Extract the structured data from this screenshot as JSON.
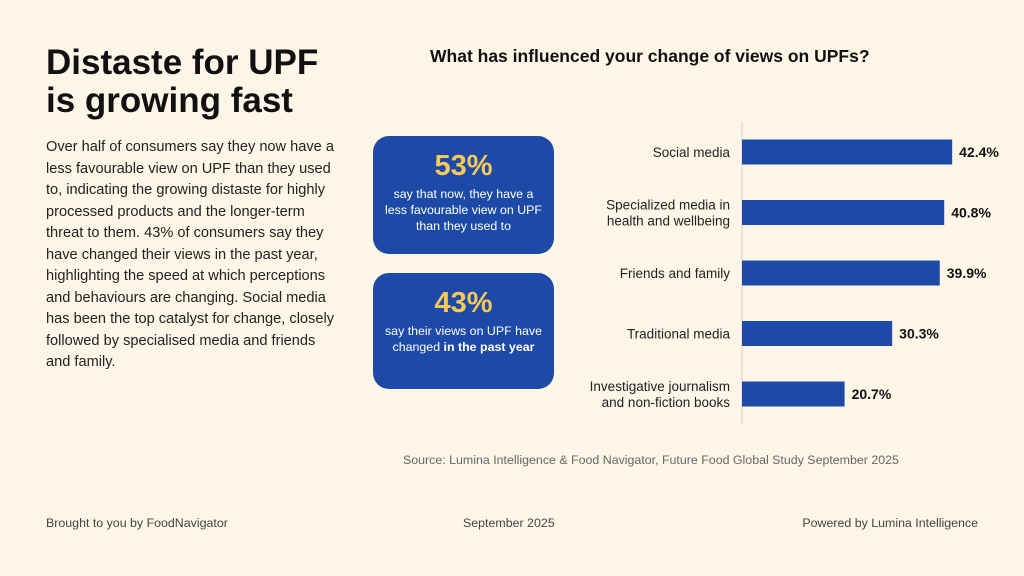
{
  "headline": "Distaste for UPF is growing fast",
  "body": "Over half of consumers say they now have a less favourable view on UPF than they used to, indicating the growing distaste for highly processed products and the longer-term threat to them. 43% of consumers say they have changed their views in the past year, highlighting the speed at which perceptions and behaviours are changing. Social media has been the top catalyst for change, closely followed by specialised media and friends and family.",
  "stats": [
    {
      "value": "53%",
      "text": "say that now, they have a less favourable view on UPF than they used to",
      "text_bold": ""
    },
    {
      "value": "43%",
      "text": "say their views on UPF have changed ",
      "text_bold": "in the past year"
    }
  ],
  "chart_data": {
    "type": "bar",
    "orientation": "horizontal",
    "title": "What has influenced your change of views on UPFs?",
    "categories": [
      "Social media",
      "Specialized media in health and wellbeing",
      "Friends and family",
      "Traditional media",
      "Investigative journalism and non-fiction books"
    ],
    "category_lines": [
      [
        "Social media"
      ],
      [
        "Specialized media in",
        "health and wellbeing"
      ],
      [
        "Friends and family"
      ],
      [
        "Traditional media"
      ],
      [
        "Investigative journalism",
        "and non-fiction books"
      ]
    ],
    "values": [
      42.4,
      40.8,
      39.9,
      30.3,
      20.7
    ],
    "value_labels": [
      "42.4%",
      "40.8%",
      "39.9%",
      "30.3%",
      "20.7%"
    ],
    "xlim": [
      0,
      46
    ],
    "bar_color": "#1d4aa6",
    "grid": false
  },
  "source": "Source: Lumina Intelligence & Food Navigator, Future Food Global Study September 2025",
  "footer": {
    "left": "Brought to you by FoodNavigator",
    "center": "September 2025",
    "right": "Powered by Lumina Intelligence"
  },
  "colors": {
    "background": "#fdf6e7",
    "accent_blue": "#1d4aa6",
    "accent_yellow": "#f7c85a"
  }
}
